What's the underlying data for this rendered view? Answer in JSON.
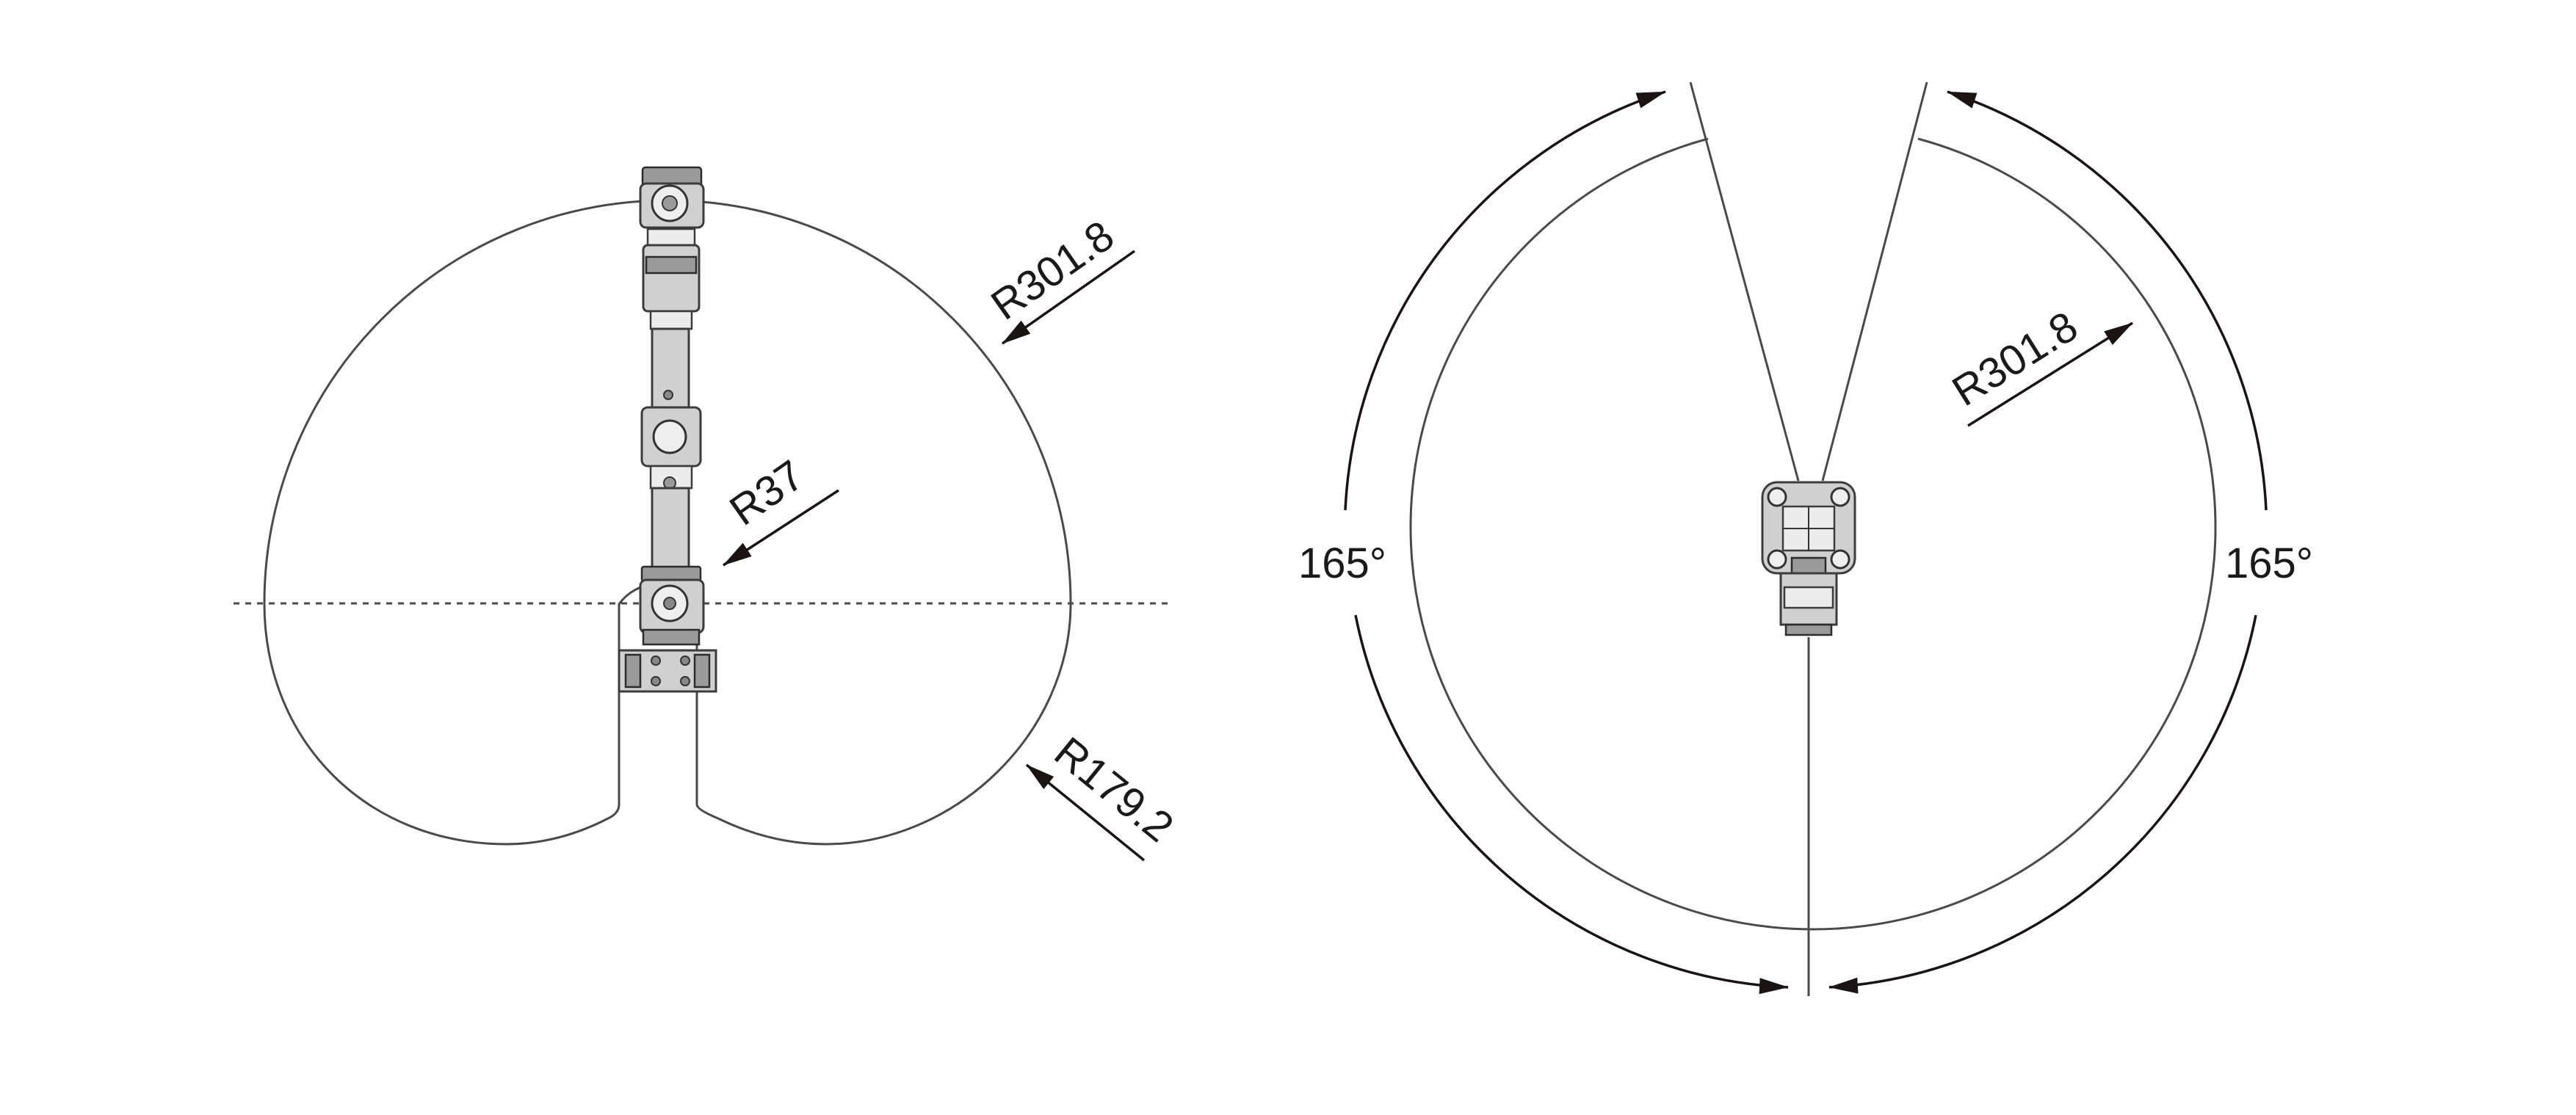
{
  "side_view": {
    "outer_radius_label": "R301.8",
    "inner_radius_label": "R37",
    "lower_radius_label": "R179.2"
  },
  "top_view": {
    "radius_label": "R301.8",
    "left_angle_label": "165°",
    "right_angle_label": "165°"
  },
  "colors": {
    "line": "#4a4a4a",
    "arrow": "#1a1414",
    "part_fill": "#d0d0d0"
  }
}
